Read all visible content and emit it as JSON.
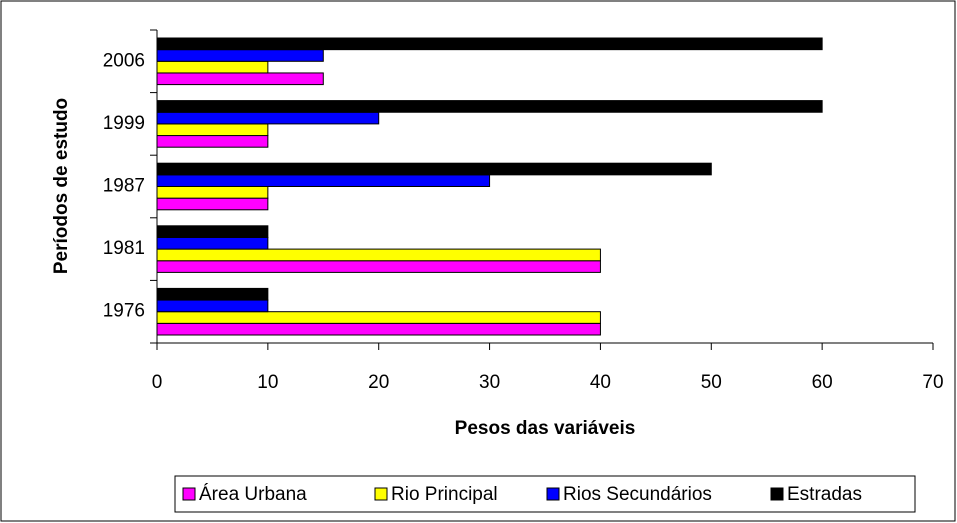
{
  "chart_data": {
    "type": "hbar",
    "xlabel": "Pesos das variáveis",
    "ylabel": "Períodos de estudo",
    "categories": [
      "1976",
      "1981",
      "1987",
      "1999",
      "2006"
    ],
    "series": [
      {
        "name": "Área Urbana",
        "color": "#ff00ff",
        "values": [
          40,
          40,
          10,
          10,
          15
        ]
      },
      {
        "name": "Rio Principal",
        "color": "#ffff00",
        "values": [
          40,
          40,
          10,
          10,
          10
        ]
      },
      {
        "name": "Rios Secundários",
        "color": "#0000ff",
        "values": [
          10,
          10,
          30,
          20,
          15
        ]
      },
      {
        "name": "Estradas",
        "color": "#000000",
        "values": [
          10,
          10,
          50,
          60,
          60
        ]
      }
    ],
    "xlim": [
      0,
      70
    ],
    "xticks": [
      0,
      10,
      20,
      30,
      40,
      50,
      60,
      70
    ],
    "legend": "bottom"
  }
}
